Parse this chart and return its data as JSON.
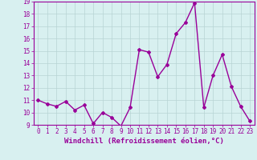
{
  "x": [
    0,
    1,
    2,
    3,
    4,
    5,
    6,
    7,
    8,
    9,
    10,
    11,
    12,
    13,
    14,
    15,
    16,
    17,
    18,
    19,
    20,
    21,
    22,
    23
  ],
  "y": [
    11.0,
    10.7,
    10.5,
    10.9,
    10.2,
    10.6,
    9.1,
    10.0,
    9.6,
    8.9,
    10.4,
    15.1,
    14.9,
    12.9,
    13.9,
    16.4,
    17.3,
    18.9,
    10.4,
    13.0,
    14.7,
    12.1,
    10.5,
    9.3
  ],
  "line_color": "#990099",
  "marker": "D",
  "marker_size": 2,
  "bg_color": "#d8f0f0",
  "grid_color": "#b8d4d4",
  "xlabel": "Windchill (Refroidissement éolien,°C)",
  "ylim": [
    9,
    19
  ],
  "xlim_min": -0.5,
  "xlim_max": 23.5,
  "yticks": [
    9,
    10,
    11,
    12,
    13,
    14,
    15,
    16,
    17,
    18,
    19
  ],
  "xticks": [
    0,
    1,
    2,
    3,
    4,
    5,
    6,
    7,
    8,
    9,
    10,
    11,
    12,
    13,
    14,
    15,
    16,
    17,
    18,
    19,
    20,
    21,
    22,
    23
  ],
  "tick_fontsize": 5.5,
  "xlabel_fontsize": 6.5,
  "line_width": 1.0
}
